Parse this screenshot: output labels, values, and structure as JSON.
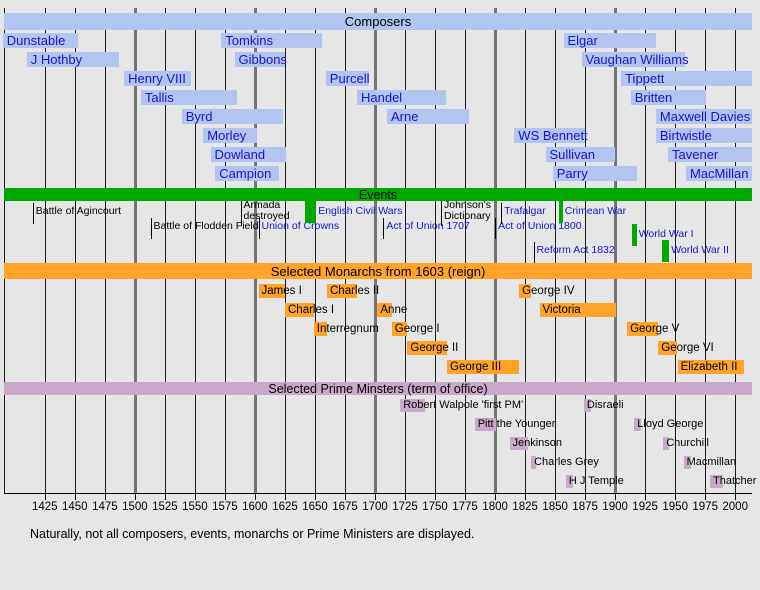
{
  "caption": "Naturally, not all composers, events, monarchs or Prime Ministers are displayed.",
  "colors": {
    "background": "#e6e6e6",
    "composer_fill": "#b2c5f0",
    "composer_text": "#1515ce",
    "event_green": "#00a800",
    "event_blue_text": "#1515ce",
    "event_black_text": "#000000",
    "monarch_fill": "#ffa428",
    "pm_fill": "#c8a9ca",
    "grid_minor": "#1a1a1a",
    "grid_century": "#757575"
  },
  "chart_data": {
    "type": "bar",
    "variant": "gantt-timeline",
    "x_axis": {
      "year_min": 1391,
      "year_max": 2014,
      "tick_years": [
        1425,
        1450,
        1475,
        1500,
        1525,
        1550,
        1575,
        1600,
        1625,
        1650,
        1675,
        1700,
        1725,
        1750,
        1775,
        1800,
        1825,
        1850,
        1875,
        1900,
        1925,
        1950,
        1975,
        2000
      ],
      "minor_gridlines": [
        1425,
        1450,
        1475,
        1525,
        1550,
        1575,
        1625,
        1650,
        1675,
        1725,
        1750,
        1775,
        1825,
        1850,
        1875,
        1925,
        1950,
        1975,
        2000
      ],
      "century_gridlines": [
        1500,
        1600,
        1700,
        1800,
        1900
      ],
      "grid": true
    },
    "sections": [
      {
        "id": "composers",
        "title": "Composers",
        "items": [
          {
            "label": "Dunstable",
            "start": 1390,
            "end": 1453,
            "lane": 0
          },
          {
            "label": "J Hothby",
            "start": 1410,
            "end": 1487,
            "lane": 1
          },
          {
            "label": "Henry VIII",
            "start": 1491,
            "end": 1547,
            "lane": 2
          },
          {
            "label": "Tallis",
            "start": 1505,
            "end": 1585,
            "lane": 3
          },
          {
            "label": "Byrd",
            "start": 1539,
            "end": 1623,
            "lane": 4
          },
          {
            "label": "Morley",
            "start": 1557,
            "end": 1602,
            "lane": 5
          },
          {
            "label": "Dowland",
            "start": 1563,
            "end": 1626,
            "lane": 6
          },
          {
            "label": "Campion",
            "start": 1567,
            "end": 1620,
            "lane": 7
          },
          {
            "label": "Tomkins",
            "start": 1572,
            "end": 1656,
            "lane": 0
          },
          {
            "label": "Gibbons",
            "start": 1583,
            "end": 1625,
            "lane": 1
          },
          {
            "label": "Purcell",
            "start": 1659,
            "end": 1695,
            "lane": 2
          },
          {
            "label": "Handel",
            "start": 1685,
            "end": 1759,
            "lane": 3
          },
          {
            "label": "Arne",
            "start": 1710,
            "end": 1778,
            "lane": 4
          },
          {
            "label": "WS Bennett",
            "start": 1816,
            "end": 1875,
            "lane": 5
          },
          {
            "label": "Sullivan",
            "start": 1842,
            "end": 1900,
            "lane": 6
          },
          {
            "label": "Parry",
            "start": 1848,
            "end": 1918,
            "lane": 7
          },
          {
            "label": "Elgar",
            "start": 1857,
            "end": 1934,
            "lane": 0
          },
          {
            "label": "Vaughan Williams",
            "start": 1872,
            "end": 1958,
            "lane": 1
          },
          {
            "label": "Tippett",
            "start": 1905,
            "end": 2014,
            "lane": 2
          },
          {
            "label": "Britten",
            "start": 1913,
            "end": 1976,
            "lane": 3
          },
          {
            "label": "Maxwell Davies",
            "start": 1934,
            "end": 2014,
            "lane": 4
          },
          {
            "label": "Birtwistle",
            "start": 1934,
            "end": 2014,
            "lane": 5
          },
          {
            "label": "Tavener",
            "start": 1944,
            "end": 2014,
            "lane": 6
          },
          {
            "label": "MacMillan",
            "start": 1959,
            "end": 2014,
            "lane": 7
          }
        ]
      },
      {
        "id": "events",
        "title": "Events",
        "items": [
          {
            "label": "Battle of Agincourt",
            "year": 1415,
            "lane": "a",
            "marker": "tick",
            "color": "black"
          },
          {
            "label": "Battle of Flodden Field",
            "year": 1513,
            "lane": "b",
            "marker": "tick",
            "color": "black"
          },
          {
            "label": "Armada destroyed",
            "lines": [
              "Armada",
              "destroyed"
            ],
            "year": 1588,
            "lane": "a",
            "marker": "tick",
            "color": "black"
          },
          {
            "label": "Union of Crowns",
            "year": 1603,
            "lane": "b",
            "marker": "tick",
            "color": "blue"
          },
          {
            "label": "English Civil Wars",
            "start": 1642,
            "end": 1651,
            "lane": "a",
            "marker": "block",
            "color": "blue"
          },
          {
            "label": "Act of Union 1707",
            "year": 1707,
            "lane": "b",
            "marker": "tick",
            "color": "blue"
          },
          {
            "label": "Johnson's Dictionary",
            "lines": [
              "Johnson's",
              "Dictionary"
            ],
            "year": 1755,
            "lane": "a",
            "marker": "tick",
            "color": "black"
          },
          {
            "label": "Act of Union 1800",
            "year": 1800,
            "lane": "b",
            "marker": "tick",
            "color": "blue"
          },
          {
            "label": "Trafalgar",
            "year": 1805,
            "lane": "a",
            "marker": "tick",
            "color": "blue"
          },
          {
            "label": "Reform Act 1832",
            "year": 1832,
            "lane": "d",
            "marker": "tick",
            "color": "blue"
          },
          {
            "label": "Crimean War",
            "start": 1853,
            "end": 1856,
            "lane": "a",
            "marker": "block",
            "color": "blue"
          },
          {
            "label": "World War I",
            "start": 1914,
            "end": 1918,
            "lane": "c",
            "marker": "block",
            "color": "blue"
          },
          {
            "label": "World War II",
            "start": 1939,
            "end": 1945,
            "lane": "d",
            "marker": "block",
            "color": "blue"
          }
        ]
      },
      {
        "id": "monarchs",
        "title": "Selected Monarchs from 1603 (reign)",
        "items": [
          {
            "label": "James I",
            "start": 1603,
            "end": 1625,
            "lane": 0
          },
          {
            "label": "Charles I",
            "start": 1625,
            "end": 1649,
            "lane": 1
          },
          {
            "label": "Interregnum",
            "start": 1649,
            "end": 1660,
            "lane": 2
          },
          {
            "label": "Charles II",
            "start": 1660,
            "end": 1685,
            "lane": 0
          },
          {
            "label": "Anne",
            "start": 1702,
            "end": 1714,
            "lane": 1
          },
          {
            "label": "George I",
            "start": 1714,
            "end": 1727,
            "lane": 2
          },
          {
            "label": "George II",
            "start": 1727,
            "end": 1760,
            "lane": 3
          },
          {
            "label": "George III",
            "start": 1760,
            "end": 1820,
            "lane": 4
          },
          {
            "label": "George IV",
            "start": 1820,
            "end": 1830,
            "lane": 0
          },
          {
            "label": "Victoria",
            "start": 1837,
            "end": 1901,
            "lane": 1
          },
          {
            "label": "George V",
            "start": 1910,
            "end": 1936,
            "lane": 2
          },
          {
            "label": "George VI",
            "start": 1936,
            "end": 1952,
            "lane": 3
          },
          {
            "label": "Elizabeth II",
            "start": 1952,
            "end": 2007,
            "lane": 4
          }
        ]
      },
      {
        "id": "prime_ministers",
        "title": "Selected Prime Minsters (term of office)",
        "items": [
          {
            "label": "Robert Walpole 'first PM'",
            "start": 1721,
            "end": 1742,
            "lane": 0
          },
          {
            "label": "Pitt the Younger",
            "start": 1783,
            "end": 1801,
            "lane": 1
          },
          {
            "label": "Jenkinson",
            "start": 1812,
            "end": 1827,
            "lane": 2
          },
          {
            "label": "Charles Grey",
            "start": 1830,
            "end": 1834,
            "lane": 3
          },
          {
            "label": "H J Temple",
            "start": 1859,
            "end": 1865,
            "lane": 4
          },
          {
            "label": "Disraeli",
            "start": 1874,
            "end": 1880,
            "lane": 0
          },
          {
            "label": "Lloyd George",
            "start": 1916,
            "end": 1922,
            "lane": 1
          },
          {
            "label": "Churchill",
            "start": 1940,
            "end": 1945,
            "lane": 2
          },
          {
            "label": "Macmillan",
            "start": 1957,
            "end": 1963,
            "lane": 3
          },
          {
            "label": "Thatcher",
            "start": 1979,
            "end": 1990,
            "lane": 4
          }
        ]
      }
    ]
  }
}
